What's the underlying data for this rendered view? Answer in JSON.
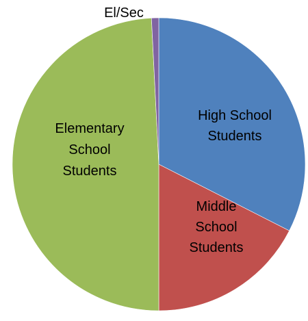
{
  "chart_data": {
    "type": "pie",
    "title": "",
    "slices": [
      {
        "label": "High School Students",
        "label_lines": [
          "High School",
          "Students"
        ],
        "value": 32.5,
        "color": "#4F81BD"
      },
      {
        "label": "Middle School Students",
        "label_lines": [
          "Middle",
          "School",
          "Students"
        ],
        "value": 17.5,
        "color": "#C0504D"
      },
      {
        "label": "Elementary School Students",
        "label_lines": [
          "Elementary",
          "School",
          "Students"
        ],
        "value": 49.2,
        "color": "#9BBB59"
      },
      {
        "label": "El/Sec",
        "label_lines": [
          "El/Sec"
        ],
        "value": 0.8,
        "color": "#8064A2"
      }
    ],
    "start_angle_deg": 0,
    "direction": "clockwise",
    "legend": "none"
  }
}
